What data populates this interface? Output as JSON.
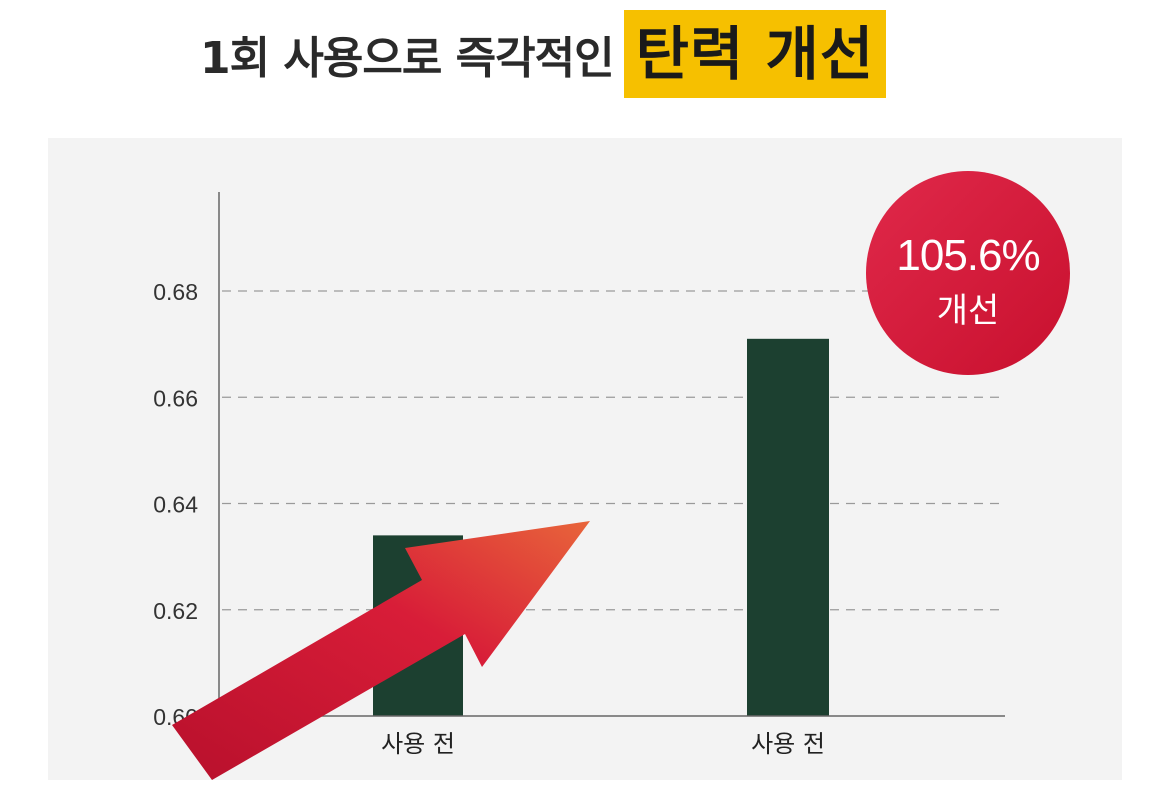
{
  "headline": {
    "text": "1회 사용으로 즉각적인",
    "highlight": "탄력 개선"
  },
  "badge": {
    "percent": "105.6%",
    "label": "개선"
  },
  "colors": {
    "bar": "#1c4030",
    "highlight": "#f6c000",
    "badge": "#d8193d",
    "arrow": "#d01c3a"
  },
  "chart_data": {
    "type": "bar",
    "categories": [
      "사용 전",
      "사용 전"
    ],
    "values": [
      0.634,
      0.671
    ],
    "yticks": [
      0.6,
      0.62,
      0.64,
      0.66,
      0.68
    ],
    "ylim": [
      0.6,
      0.69
    ],
    "grid": true,
    "title": "",
    "xlabel": "",
    "ylabel": ""
  }
}
